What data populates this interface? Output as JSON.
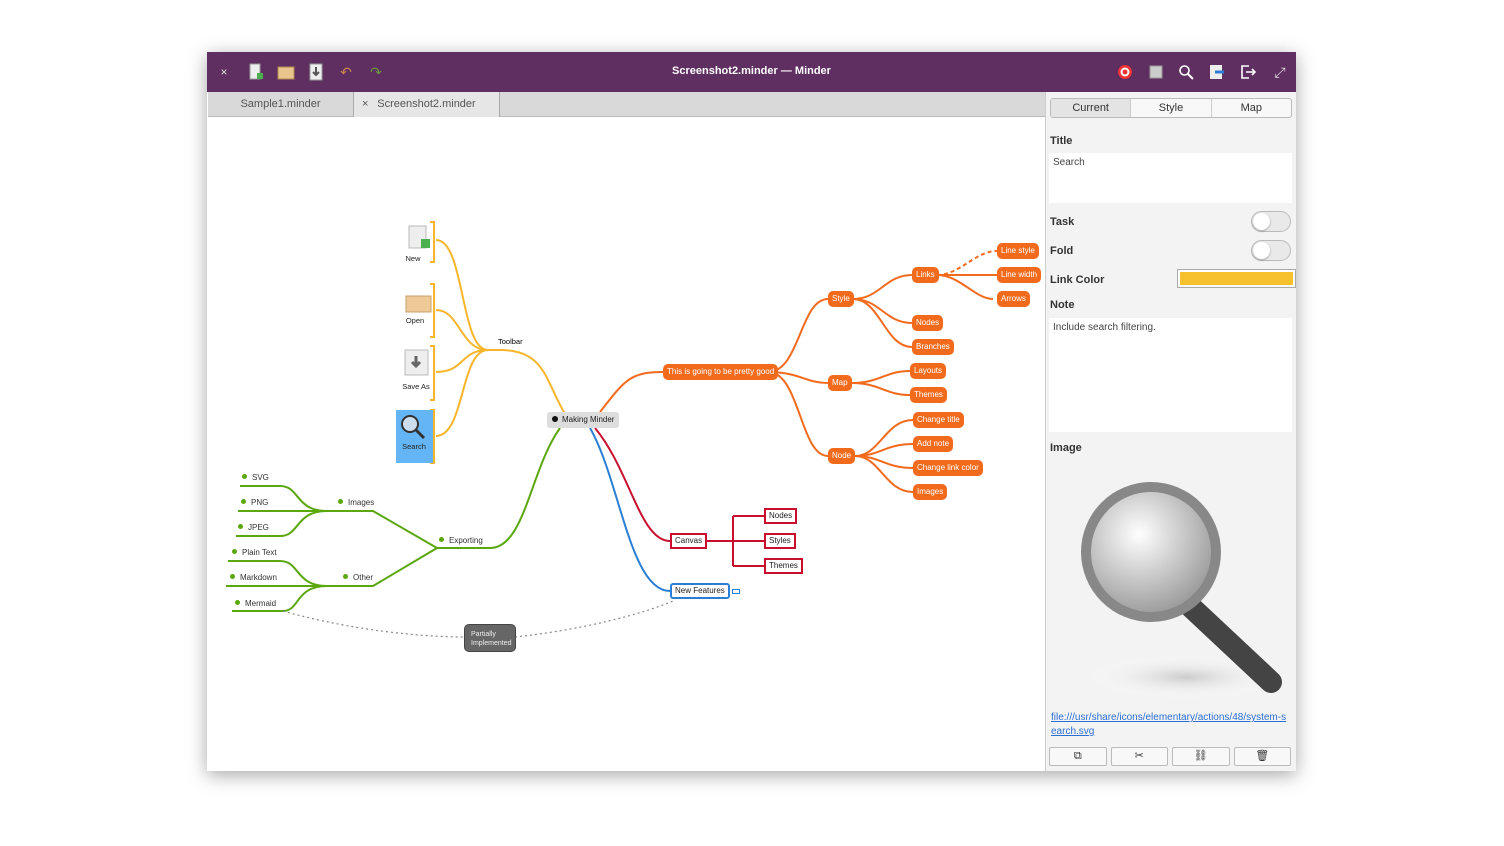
{
  "window": {
    "title": "Screenshot2.minder — Minder",
    "close": "×"
  },
  "toolbar": [
    "new-icon",
    "open-icon",
    "save-icon",
    "undo-icon",
    "redo-icon"
  ],
  "header_right": [
    "focus-icon",
    "zoom-fit-icon",
    "search-icon",
    "export-icon",
    "quit-icon",
    "fullscreen-icon"
  ],
  "tabs": [
    {
      "label": "Sample1.minder"
    },
    {
      "label": "Screenshot2.minder",
      "close": "×"
    }
  ],
  "sidebar": {
    "tabs": [
      "Current",
      "Style",
      "Map"
    ],
    "title_label": "Title",
    "title_value": "Search",
    "task_label": "Task",
    "task_on": false,
    "fold_label": "Fold",
    "fold_on": false,
    "link_color_label": "Link Color",
    "link_color": "#f7c12e",
    "note_label": "Note",
    "note_value": "Include search filtering.",
    "image_label": "Image",
    "image_uri": "file:///usr/share/icons/elementary/actions/48/system-search.svg",
    "image_buttons": [
      "copy-icon",
      "cut-icon",
      "unlink-icon",
      "delete-icon"
    ]
  },
  "map": {
    "root": "Making Minder",
    "toolbar": {
      "label": "Toolbar",
      "items": [
        "New",
        "Open",
        "Save As",
        "Search"
      ]
    },
    "orange": {
      "main": "This is going to be pretty good",
      "style": "Style",
      "links": "Links",
      "line_style": "Line style",
      "line_width": "Line width",
      "arrows": "Arrows",
      "nodes": "Nodes",
      "branches": "Branches",
      "map": "Map",
      "layouts": "Layouts",
      "themes": "Themes",
      "node": "Node",
      "change_title": "Change title",
      "add_note": "Add note",
      "change_link_color": "Change link color",
      "images": "Images"
    },
    "red": {
      "canvas": "Canvas",
      "nodes": "Nodes",
      "styles": "Styles",
      "themes": "Themes"
    },
    "blue": {
      "new_features": "New Features"
    },
    "green": {
      "exporting": "Exporting",
      "images": "Images",
      "svg": "SVG",
      "png": "PNG",
      "jpeg": "JPEG",
      "other": "Other",
      "plain": "Plain Text",
      "markdown": "Markdown",
      "mermaid": "Mermaid"
    },
    "callout": "Partially Implemented",
    "colors": {
      "toolbar": "#f7b52c",
      "orange": "#f26b1d",
      "red": "#c8102e",
      "blue": "#2a7fd4",
      "green": "#5aa70e"
    }
  }
}
